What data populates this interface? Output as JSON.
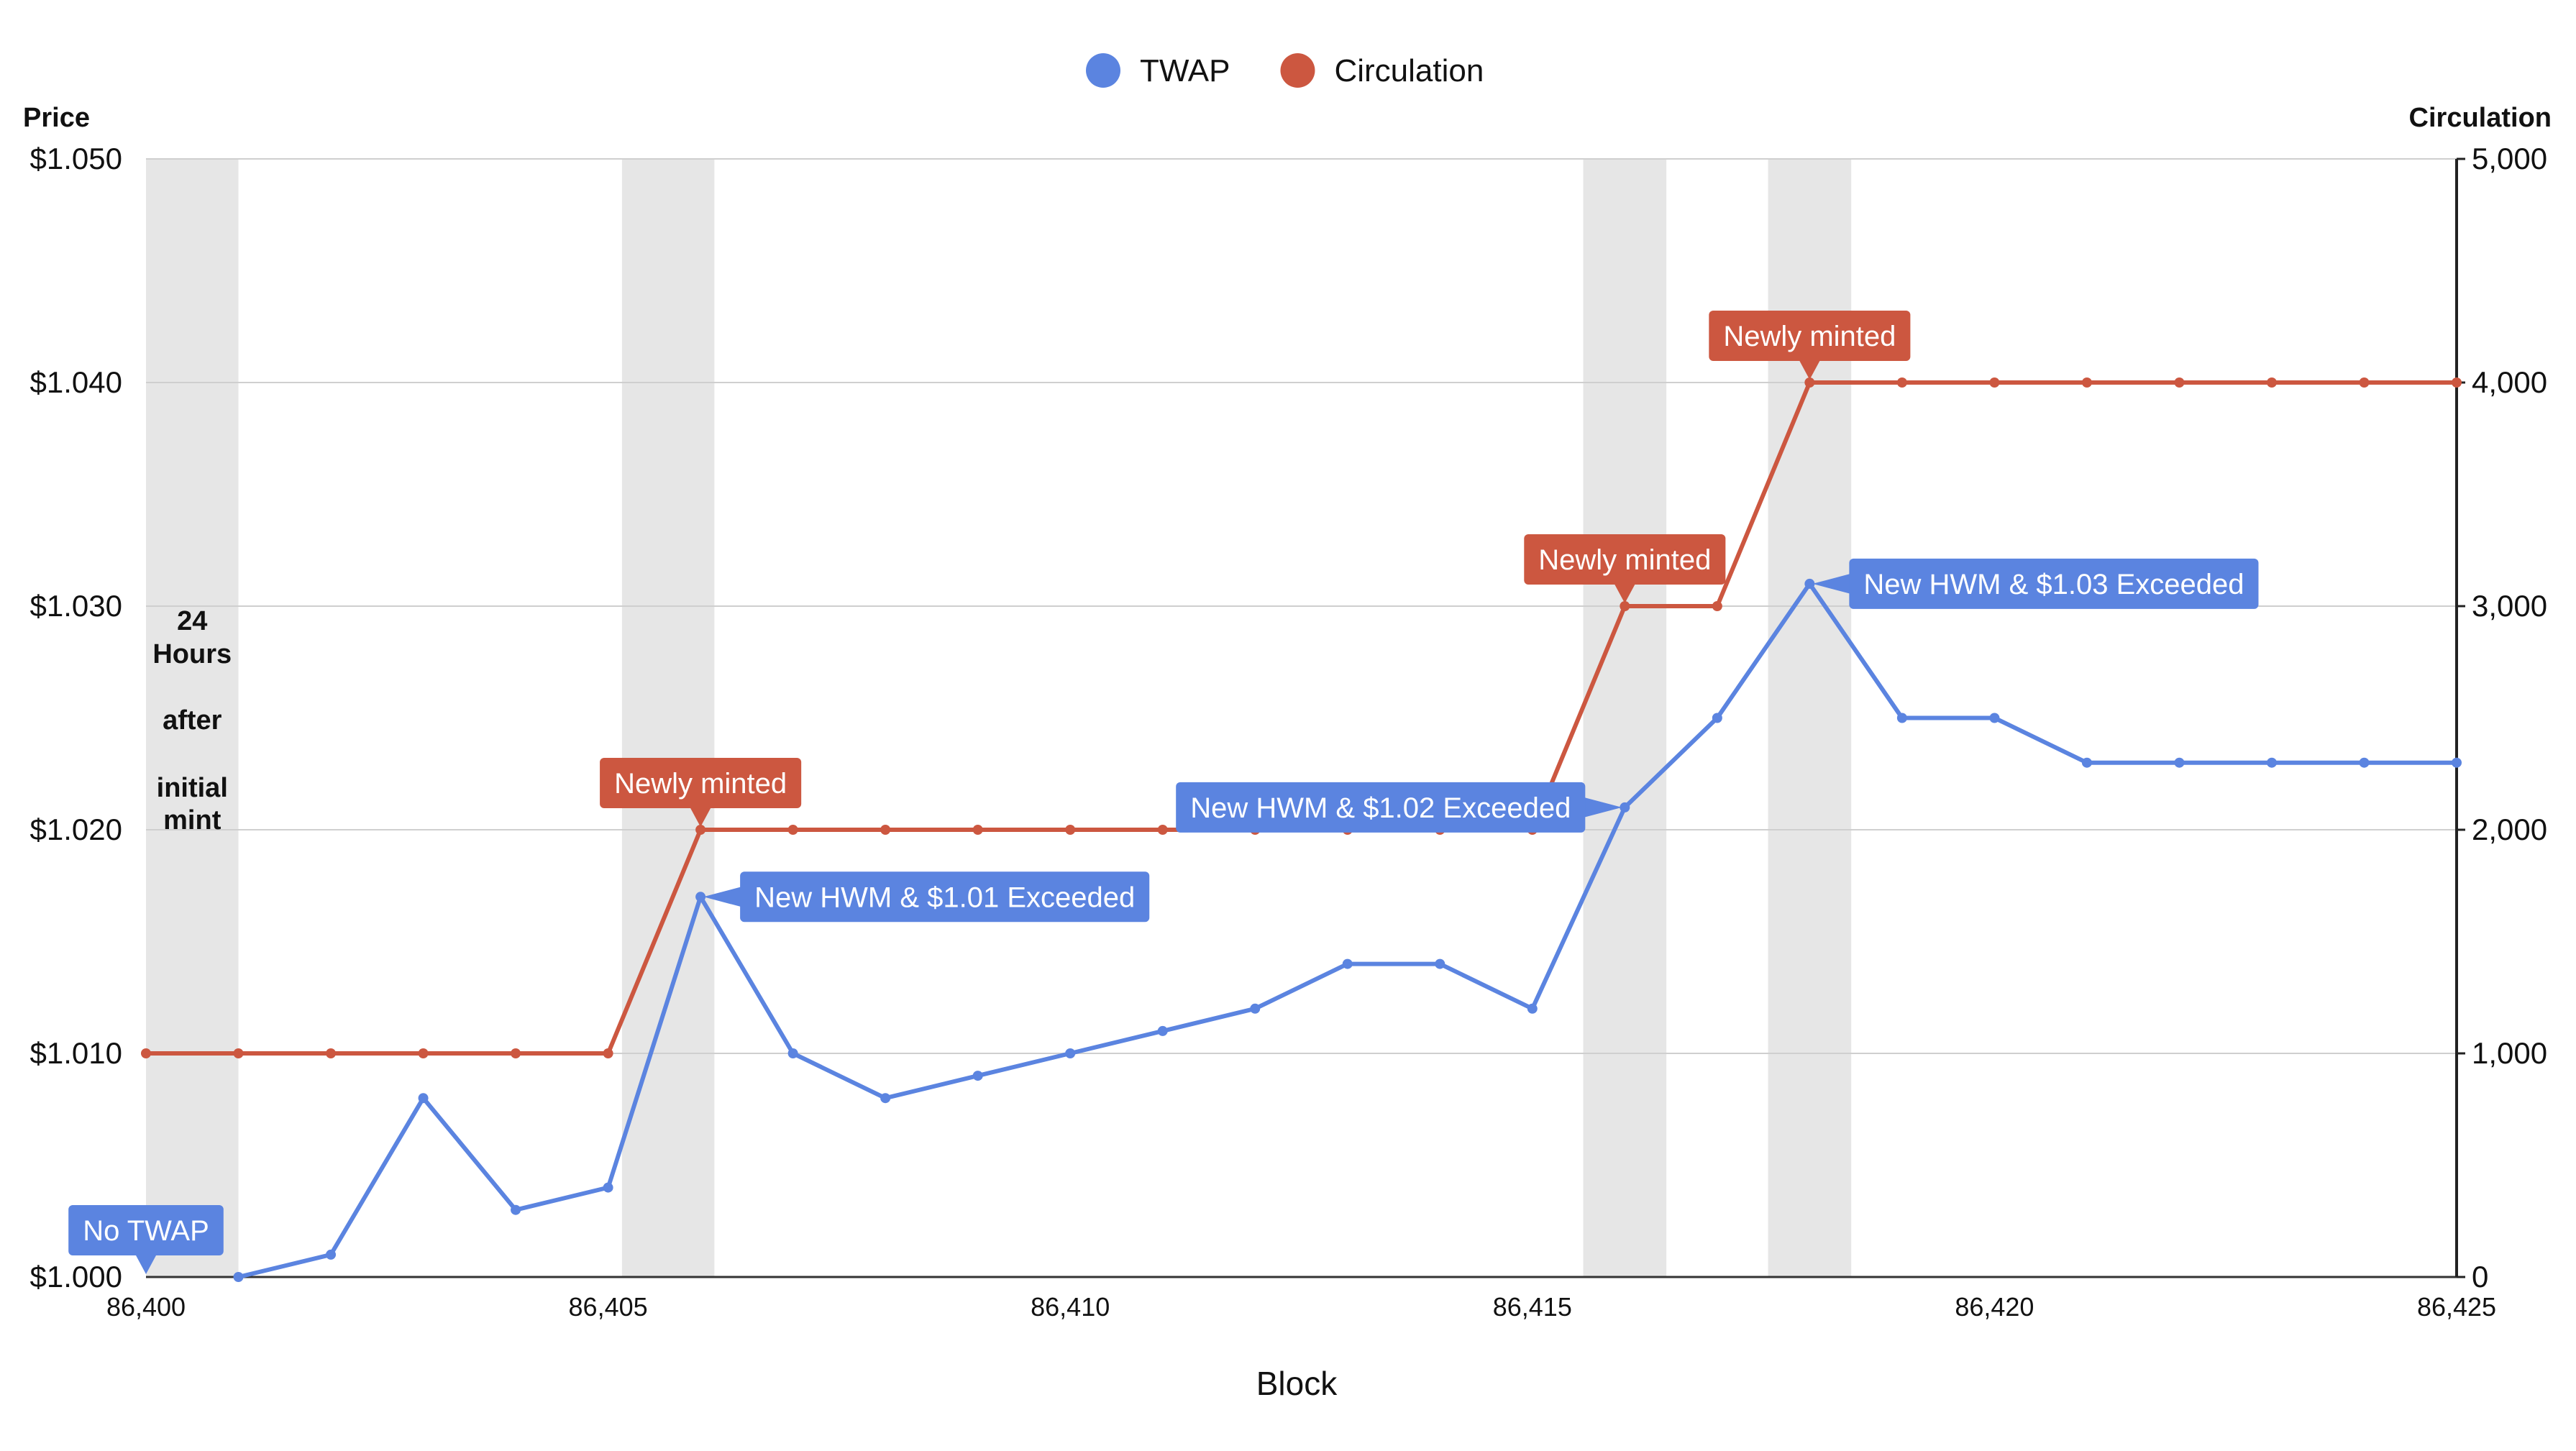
{
  "chart_data": {
    "type": "line",
    "title": "",
    "xlabel": "Block",
    "ylabel_left": "Price",
    "ylabel_right": "Circulation",
    "x": [
      86400,
      86401,
      86402,
      86403,
      86404,
      86405,
      86406,
      86407,
      86408,
      86409,
      86410,
      86411,
      86412,
      86413,
      86414,
      86415,
      86416,
      86417,
      86418,
      86419,
      86420,
      86421,
      86422,
      86423,
      86424,
      86425
    ],
    "xlim": [
      86400,
      86425
    ],
    "x_ticks": [
      86400,
      86405,
      86410,
      86415,
      86420,
      86425
    ],
    "x_tick_labels": [
      "86,400",
      "86,405",
      "86,410",
      "86,415",
      "86,420",
      "86,425"
    ],
    "ylim_left": [
      1.0,
      1.05
    ],
    "y_ticks_left": [
      1.0,
      1.01,
      1.02,
      1.03,
      1.04,
      1.05
    ],
    "y_tick_labels_left": [
      "$1.000",
      "$1.010",
      "$1.020",
      "$1.030",
      "$1.040",
      "$1.050"
    ],
    "ylim_right": [
      0,
      5000
    ],
    "y_ticks_right": [
      0,
      1000,
      2000,
      3000,
      4000,
      5000
    ],
    "y_tick_labels_right": [
      "0",
      "1,000",
      "2,000",
      "3,000",
      "4,000",
      "5,000"
    ],
    "grid": true,
    "legend_position": "top-center",
    "series": [
      {
        "name": "TWAP",
        "axis": "left",
        "color": "#5b84e0",
        "x": [
          86401,
          86402,
          86403,
          86404,
          86405,
          86406,
          86407,
          86408,
          86409,
          86410,
          86411,
          86412,
          86413,
          86414,
          86415,
          86416,
          86417,
          86418,
          86419,
          86420,
          86421,
          86422,
          86423,
          86424,
          86425
        ],
        "values": [
          1.0,
          1.001,
          1.008,
          1.003,
          1.004,
          1.017,
          1.01,
          1.008,
          1.009,
          1.01,
          1.011,
          1.012,
          1.014,
          1.014,
          1.012,
          1.021,
          1.025,
          1.031,
          1.025,
          1.025,
          1.023,
          1.023,
          1.023,
          1.023,
          1.023
        ]
      },
      {
        "name": "Circulation",
        "axis": "right",
        "color": "#cc5740",
        "x": [
          86400,
          86401,
          86402,
          86403,
          86404,
          86405,
          86406,
          86407,
          86408,
          86409,
          86410,
          86411,
          86412,
          86413,
          86414,
          86415,
          86416,
          86417,
          86418,
          86419,
          86420,
          86421,
          86422,
          86423,
          86424,
          86425
        ],
        "values": [
          1000,
          1000,
          1000,
          1000,
          1000,
          1000,
          2000,
          2000,
          2000,
          2000,
          2000,
          2000,
          2000,
          2000,
          2000,
          2000,
          3000,
          3000,
          4000,
          4000,
          4000,
          4000,
          4000,
          4000,
          4000,
          4000
        ]
      }
    ],
    "shaded_bands": [
      {
        "x_start": 86400,
        "x_end": 86401
      },
      {
        "x_start": 86405.15,
        "x_end": 86406.15
      },
      {
        "x_start": 86415.55,
        "x_end": 86416.45
      },
      {
        "x_start": 86417.55,
        "x_end": 86418.45
      }
    ],
    "band_label": [
      "24",
      "Hours",
      "after",
      "initial",
      "mint"
    ],
    "annotations": [
      {
        "text": "No TWAP",
        "series": "TWAP",
        "x": 86400,
        "y": 1.0,
        "anchor": "above"
      },
      {
        "text": "Newly minted",
        "series": "Circulation",
        "x": 86406,
        "y": 2000,
        "anchor": "above"
      },
      {
        "text": "New HWM & $1.01 Exceeded",
        "series": "TWAP",
        "x": 86406,
        "y": 1.017,
        "anchor": "right"
      },
      {
        "text": "New HWM & $1.02 Exceeded",
        "series": "TWAP",
        "x": 86416,
        "y": 1.021,
        "anchor": "left"
      },
      {
        "text": "Newly minted",
        "series": "Circulation",
        "x": 86416,
        "y": 3000,
        "anchor": "above"
      },
      {
        "text": "Newly minted",
        "series": "Circulation",
        "x": 86418,
        "y": 4000,
        "anchor": "above"
      },
      {
        "text": "New HWM & $1.03 Exceeded",
        "series": "TWAP",
        "x": 86418,
        "y": 1.031,
        "anchor": "right"
      }
    ]
  }
}
